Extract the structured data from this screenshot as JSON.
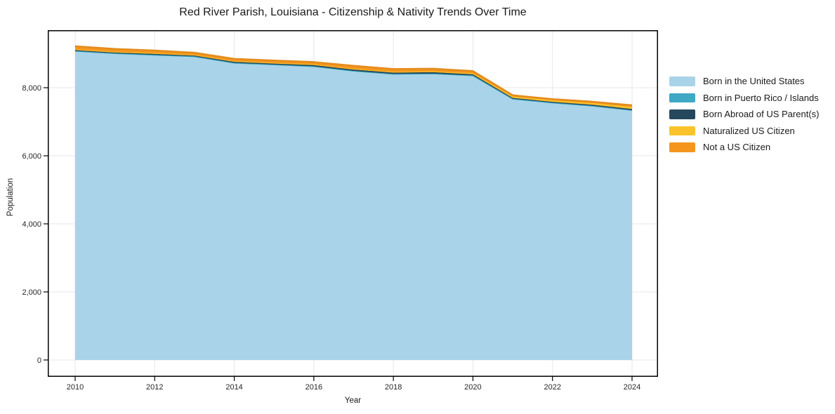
{
  "chart_data": {
    "type": "area",
    "stacked": true,
    "title": "Red River Parish, Louisiana - Citizenship & Nativity Trends Over Time",
    "xlabel": "Year",
    "ylabel": "Population",
    "x": [
      2010,
      2011,
      2012,
      2013,
      2014,
      2015,
      2016,
      2017,
      2018,
      2019,
      2020,
      2021,
      2022,
      2023,
      2024
    ],
    "xticks": [
      2010,
      2012,
      2014,
      2016,
      2018,
      2020,
      2022,
      2024
    ],
    "xtick_labels": [
      "2010",
      "2012",
      "2014",
      "2016",
      "2018",
      "2020",
      "2022",
      "2024"
    ],
    "yticks": [
      0,
      2000,
      4000,
      6000,
      8000
    ],
    "ytick_labels": [
      "0",
      "2,000",
      "4,000",
      "6,000",
      "8,000"
    ],
    "ylim": [
      0,
      9690
    ],
    "grid": true,
    "legend_position": "right",
    "series": [
      {
        "name": "Born in the United States",
        "color": "#a9d3e8",
        "values": [
          9075,
          9005,
          8960,
          8915,
          8725,
          8675,
          8625,
          8490,
          8395,
          8405,
          8345,
          7655,
          7545,
          7455,
          7330
        ]
      },
      {
        "name": "Born in Puerto Rico / Islands",
        "color": "#3fa8c5",
        "values": [
          5,
          5,
          5,
          5,
          5,
          5,
          5,
          5,
          10,
          10,
          15,
          20,
          15,
          15,
          10
        ]
      },
      {
        "name": "Born Abroad of US Parent(s)",
        "color": "#25485c",
        "values": [
          25,
          25,
          30,
          30,
          35,
          35,
          40,
          40,
          40,
          40,
          35,
          25,
          25,
          30,
          35
        ]
      },
      {
        "name": "Naturalized US Citizen",
        "color": "#fbc32b",
        "values": [
          20,
          20,
          20,
          15,
          15,
          15,
          15,
          20,
          20,
          25,
          30,
          40,
          45,
          50,
          60
        ]
      },
      {
        "name": "Not a US Citizen",
        "color": "#f5961f",
        "values": [
          95,
          85,
          80,
          65,
          70,
          70,
          70,
          90,
          85,
          80,
          65,
          40,
          35,
          40,
          50
        ]
      }
    ],
    "totals": [
      9220,
      9140,
      9095,
      9030,
      8850,
      8800,
      8755,
      8645,
      8550,
      8560,
      8490,
      7780,
      7665,
      7590,
      7485
    ],
    "colors": {
      "axis": "#000000",
      "grid": "#e7e7e7",
      "tick_text": "#262626",
      "background": "#ffffff"
    }
  }
}
